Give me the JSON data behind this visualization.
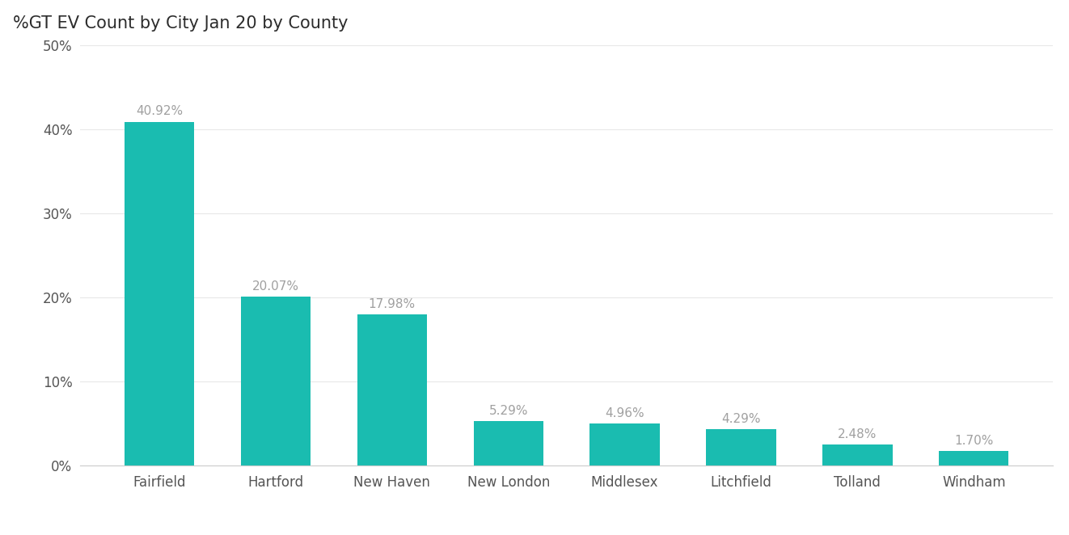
{
  "title": "%GT EV Count by City Jan 20 by County",
  "title_bg_color": "#4ECDC4",
  "title_text_color": "#2c2c2c",
  "bar_color": "#1ABCB0",
  "categories": [
    "Fairfield",
    "Hartford",
    "New Haven",
    "New London",
    "Middlesex",
    "Litchfield",
    "Tolland",
    "Windham"
  ],
  "values": [
    40.92,
    20.07,
    17.98,
    5.29,
    4.96,
    4.29,
    2.48,
    1.7
  ],
  "labels": [
    "40.92%",
    "20.07%",
    "17.98%",
    "5.29%",
    "4.96%",
    "4.29%",
    "2.48%",
    "1.70%"
  ],
  "ylim": [
    0,
    50
  ],
  "yticks": [
    0,
    10,
    20,
    30,
    40,
    50
  ],
  "ytick_labels": [
    "0%",
    "10%",
    "20%",
    "30%",
    "40%",
    "50%"
  ],
  "label_color": "#a0a0a0",
  "bg_color": "#ffffff",
  "label_fontsize": 11,
  "title_fontsize": 15,
  "tick_fontsize": 12,
  "xlabel_fontsize": 12,
  "title_bar_height": 0.075
}
